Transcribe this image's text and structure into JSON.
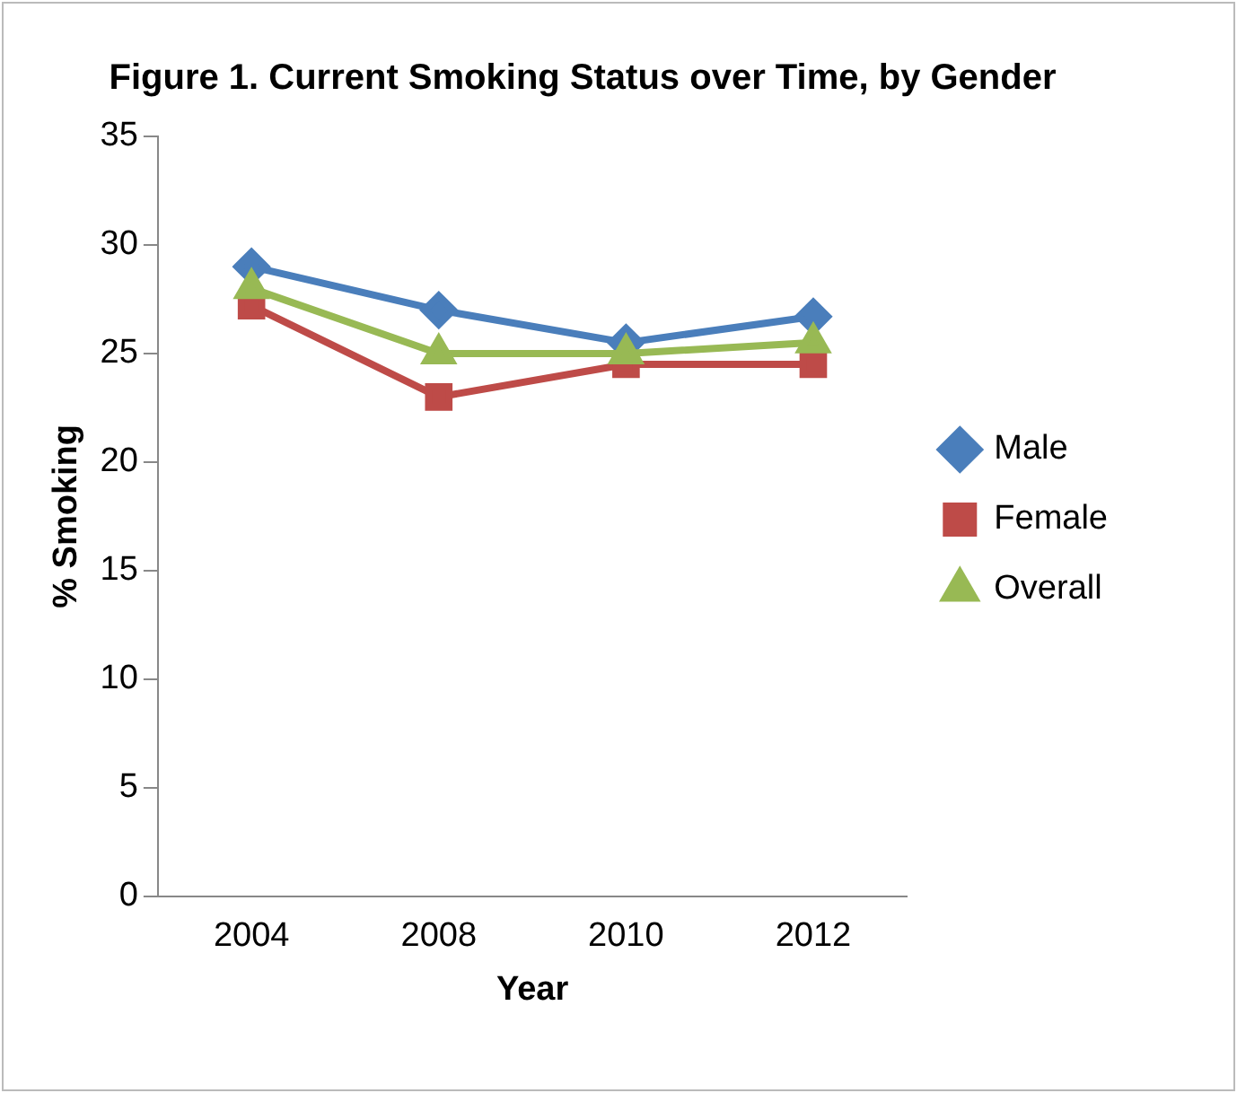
{
  "chart_data": {
    "type": "line",
    "title": "Figure 1. Current Smoking Status over Time, by Gender",
    "xlabel": "Year",
    "ylabel": "% Smoking",
    "categories": [
      "2004",
      "2008",
      "2010",
      "2012"
    ],
    "series": [
      {
        "name": "Male",
        "color": "#4a7ebb",
        "values": [
          29,
          27,
          25.5,
          26.7
        ],
        "marker": "diamond"
      },
      {
        "name": "Female",
        "color": "#be4b48",
        "values": [
          27.2,
          23,
          24.5,
          24.5
        ],
        "marker": "square"
      },
      {
        "name": "Overall",
        "color": "#98b954",
        "values": [
          28,
          25,
          25,
          25.5
        ],
        "marker": "triangle"
      }
    ],
    "ylim": [
      0,
      35
    ],
    "yticks": [
      0,
      5,
      10,
      15,
      20,
      25,
      30,
      35
    ],
    "grid": false,
    "legend": "right",
    "line_style": "solid"
  }
}
